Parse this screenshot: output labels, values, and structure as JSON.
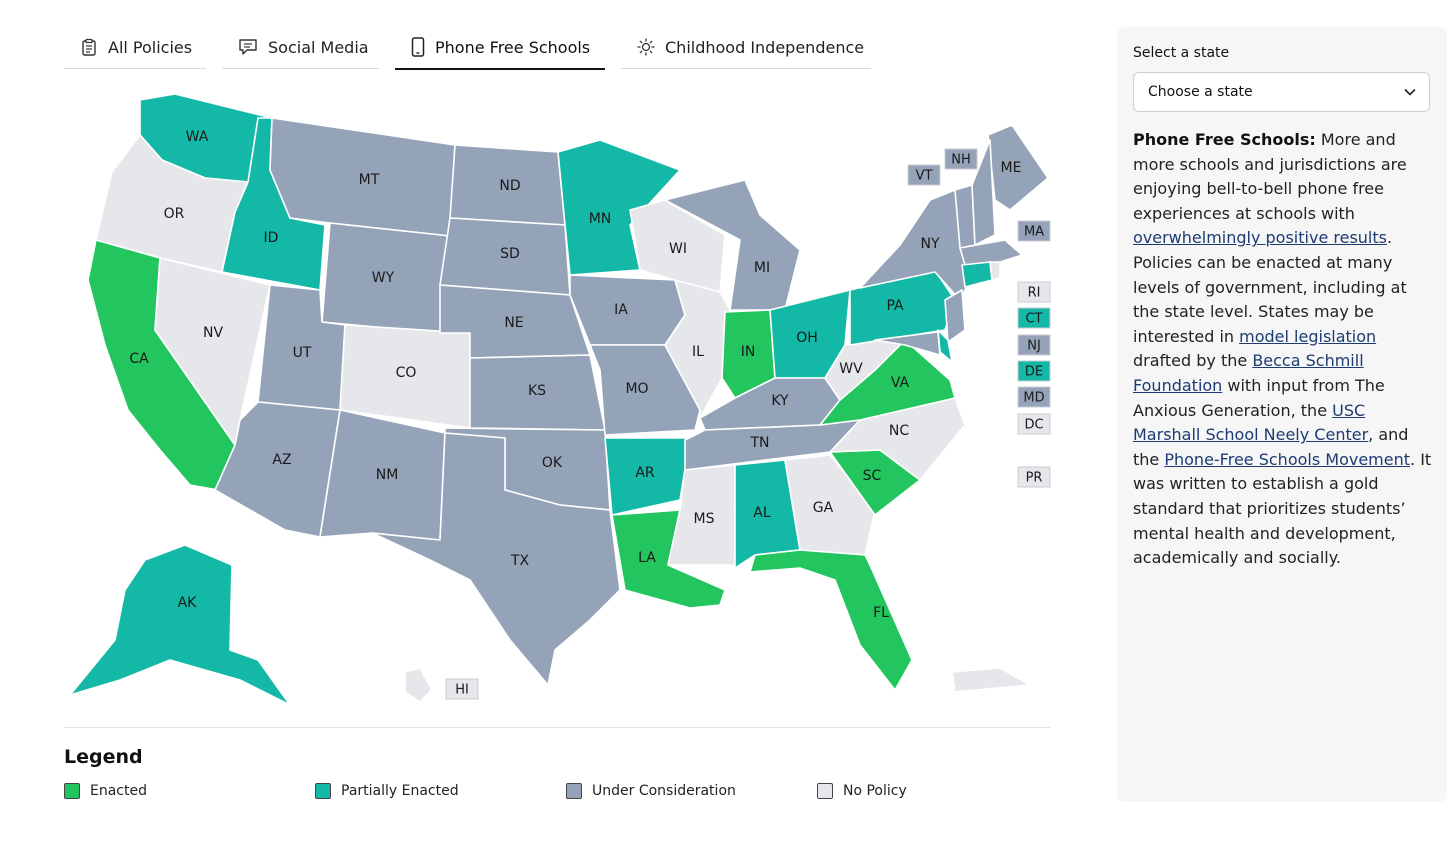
{
  "tabs": [
    {
      "label": "All Policies",
      "icon": "clipboard-icon"
    },
    {
      "label": "Social Media",
      "icon": "chat-bubble-icon"
    },
    {
      "label": "Phone Free Schools",
      "icon": "phone-icon",
      "active": true
    },
    {
      "label": "Childhood Independence",
      "icon": "sun-icon"
    }
  ],
  "colors": {
    "enacted": "#22c55e",
    "partial": "#14b8a6",
    "consideration": "#94a3b8",
    "none": "#e5e7eb"
  },
  "map": {
    "states": {
      "WA": "partial",
      "OR": "none",
      "CA": "enacted",
      "ID": "partial",
      "NV": "none",
      "MT": "consideration",
      "WY": "consideration",
      "UT": "consideration",
      "AZ": "consideration",
      "CO": "none",
      "NM": "consideration",
      "ND": "consideration",
      "SD": "consideration",
      "NE": "consideration",
      "KS": "consideration",
      "OK": "consideration",
      "TX": "consideration",
      "MN": "partial",
      "IA": "consideration",
      "MO": "consideration",
      "AR": "partial",
      "LA": "enacted",
      "WI": "none",
      "IL": "none",
      "MI": "consideration",
      "IN": "enacted",
      "OH": "partial",
      "KY": "consideration",
      "TN": "consideration",
      "MS": "none",
      "AL": "partial",
      "GA": "none",
      "FL": "enacted",
      "SC": "enacted",
      "NC": "none",
      "VA": "enacted",
      "WV": "none",
      "PA": "partial",
      "NY": "consideration",
      "ME": "consideration",
      "AK": "partial",
      "HI": "none",
      "PR": "none"
    },
    "small_states": [
      {
        "code": "VT",
        "status": "consideration"
      },
      {
        "code": "NH",
        "status": "consideration"
      },
      {
        "code": "MA",
        "status": "consideration"
      },
      {
        "code": "RI",
        "status": "none"
      },
      {
        "code": "CT",
        "status": "partial"
      },
      {
        "code": "NJ",
        "status": "consideration"
      },
      {
        "code": "DE",
        "status": "partial"
      },
      {
        "code": "MD",
        "status": "consideration"
      },
      {
        "code": "DC",
        "status": "none"
      },
      {
        "code": "PR",
        "status": "none"
      },
      {
        "code": "HI",
        "status": "none"
      }
    ]
  },
  "legend": {
    "title": "Legend",
    "items": [
      {
        "label": "Enacted",
        "color": "#22c55e"
      },
      {
        "label": "Partially Enacted",
        "color": "#14b8a6"
      },
      {
        "label": "Under Consideration",
        "color": "#94a3b8"
      },
      {
        "label": "No Policy",
        "color": "#e5e7eb"
      }
    ]
  },
  "panel": {
    "select_label": "Select a state",
    "select_value": "Choose a state",
    "heading": "Phone Free Schools:",
    "text_1": " More and more schools and jurisdictions are enjoying bell-to-bell phone free experiences at schools with ",
    "link_1": "overwhelmingly positive results",
    "text_2": ". Policies can be enacted at many levels of government, including at the state level. States may be interested in ",
    "link_2": "model legislation",
    "text_3": " drafted by the ",
    "link_3": "Becca Schmill Foundation",
    "text_4": " with input from The Anxious Generation, the ",
    "link_4": "USC Marshall School Neely Center",
    "text_5": ", and the ",
    "link_5": "Phone-Free Schools Movement",
    "text_6": ". It was written to establish a gold standard that prioritizes students’ mental health and development, academically and socially."
  }
}
